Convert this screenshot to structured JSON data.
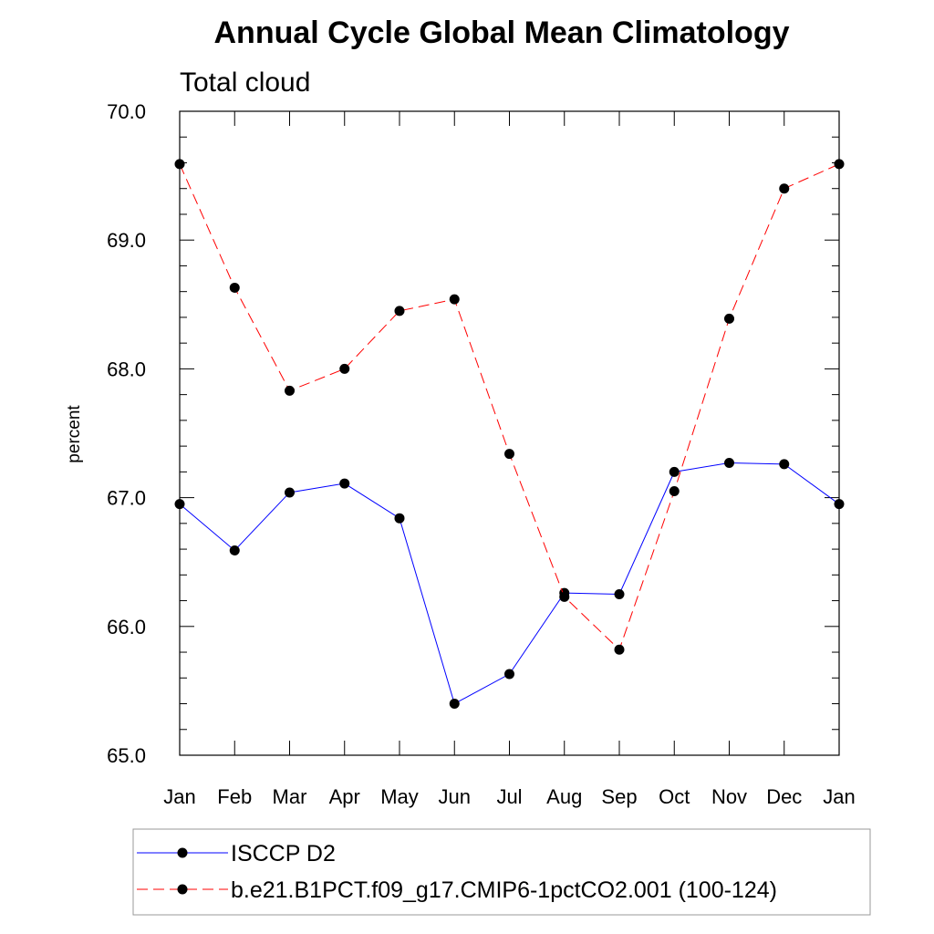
{
  "chart_data": {
    "type": "line",
    "title": "Annual Cycle Global Mean Climatology",
    "subtitle": "Total cloud",
    "xlabel": "",
    "ylabel": "percent",
    "categories": [
      "Jan",
      "Feb",
      "Mar",
      "Apr",
      "May",
      "Jun",
      "Jul",
      "Aug",
      "Sep",
      "Oct",
      "Nov",
      "Dec",
      "Jan"
    ],
    "ylim": [
      65.0,
      70.0
    ],
    "yticks": [
      "65.0",
      "66.0",
      "67.0",
      "68.0",
      "69.0",
      "70.0"
    ],
    "grid": false,
    "legend_position": "bottom",
    "series": [
      {
        "name": "ISCCP D2",
        "color": "#0000ff",
        "line_style": "solid",
        "marker": "filled-circle",
        "values": [
          66.95,
          66.59,
          67.04,
          67.11,
          66.84,
          65.4,
          65.63,
          66.26,
          66.25,
          67.2,
          67.27,
          67.26,
          66.95
        ]
      },
      {
        "name": "b.e21.B1PCT.f09_g17.CMIP6-1pctCO2.001 (100-124)",
        "color": "#ff0000",
        "line_style": "dashed",
        "marker": "filled-circle",
        "values": [
          69.59,
          68.63,
          67.83,
          68.0,
          68.45,
          68.54,
          67.34,
          66.23,
          65.82,
          67.05,
          68.39,
          69.4,
          69.59
        ]
      }
    ]
  }
}
